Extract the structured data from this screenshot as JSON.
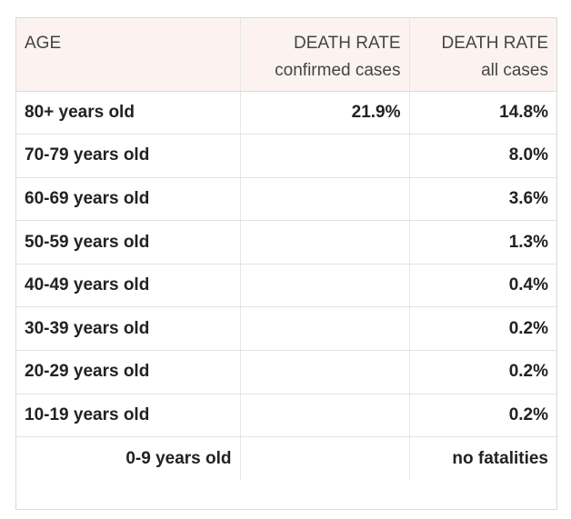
{
  "table": {
    "headers": {
      "age": "AGE",
      "confirmed": {
        "line1": "DEATH RATE",
        "line2": "confirmed cases"
      },
      "all": {
        "line1": "DEATH RATE",
        "line2": "all cases"
      }
    },
    "rows": [
      {
        "age": "80+ years old",
        "confirmed": "21.9%",
        "all": "14.8%"
      },
      {
        "age": "70-79 years old",
        "confirmed": "",
        "all": "8.0%"
      },
      {
        "age": "60-69 years old",
        "confirmed": "",
        "all": "3.6%"
      },
      {
        "age": "50-59 years old",
        "confirmed": "",
        "all": "1.3%"
      },
      {
        "age": "40-49 years old",
        "confirmed": "",
        "all": "0.4%"
      },
      {
        "age": "30-39 years old",
        "confirmed": "",
        "all": "0.2%"
      },
      {
        "age": "20-29 years old",
        "confirmed": "",
        "all": "0.2%"
      },
      {
        "age": "10-19 years old",
        "confirmed": "",
        "all": "0.2%"
      },
      {
        "age": "0-9 years old",
        "confirmed": "",
        "all": "no fatalities"
      }
    ]
  }
}
